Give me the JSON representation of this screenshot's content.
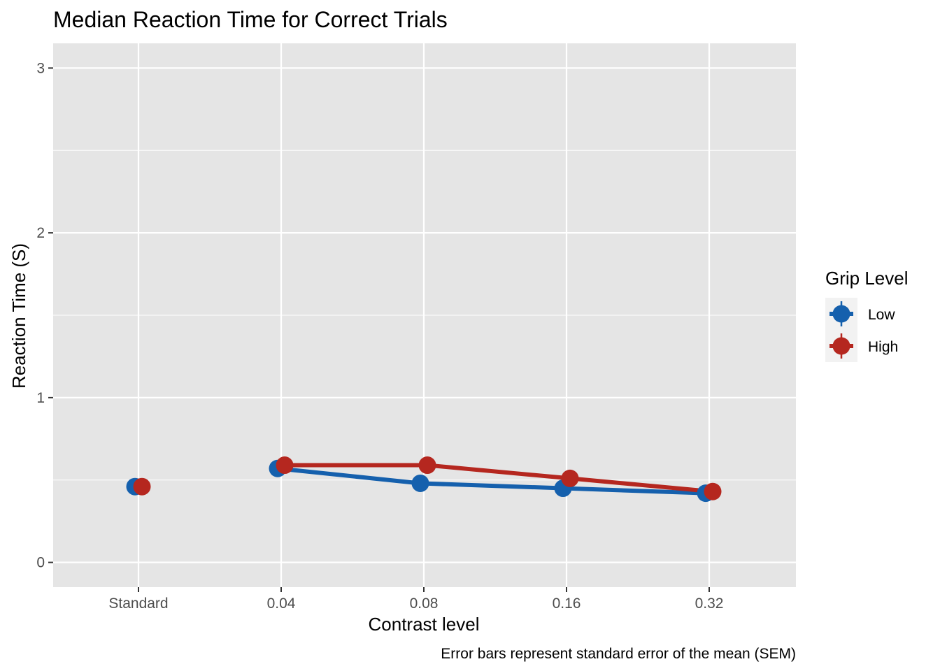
{
  "chart_data": {
    "type": "line",
    "title": "Median Reaction Time for Correct Trials",
    "xlabel": "Contrast level",
    "ylabel": "Reaction Time (S)",
    "caption": "Error bars represent standard error of the mean (SEM)",
    "categories": [
      "Standard",
      "0.04",
      "0.08",
      "0.16",
      "0.32"
    ],
    "ylim": [
      -0.15,
      3.15
    ],
    "yticks": [
      "0",
      "1",
      "2",
      "3"
    ],
    "grid": true,
    "legend": {
      "title": "Grip Level",
      "position": "right"
    },
    "series": [
      {
        "name": "Low",
        "color": "#1560ad",
        "values": [
          0.46,
          0.57,
          0.48,
          0.45,
          0.42
        ],
        "connected_from_index": 1
      },
      {
        "name": "High",
        "color": "#b5271f",
        "values": [
          0.46,
          0.59,
          0.59,
          0.51,
          0.43
        ],
        "connected_from_index": 1
      }
    ],
    "panel_background": "#e5e5e5",
    "grid_color": "#ffffff"
  }
}
